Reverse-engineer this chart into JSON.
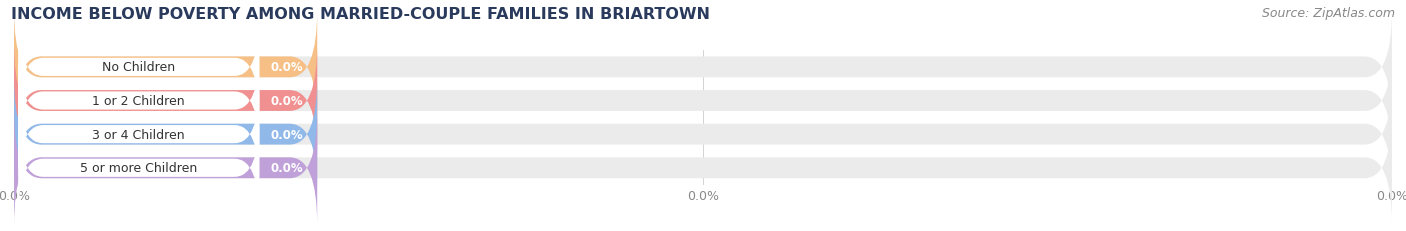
{
  "title": "INCOME BELOW POVERTY AMONG MARRIED-COUPLE FAMILIES IN BRIARTOWN",
  "source": "Source: ZipAtlas.com",
  "categories": [
    "No Children",
    "1 or 2 Children",
    "3 or 4 Children",
    "5 or more Children"
  ],
  "values": [
    0.0,
    0.0,
    0.0,
    0.0
  ],
  "bar_colors": [
    "#f5bf85",
    "#f09090",
    "#90b8e8",
    "#c0a0d8"
  ],
  "background_color": "#ffffff",
  "bar_bg_color": "#ebebeb",
  "title_fontsize": 11.5,
  "source_fontsize": 9,
  "tick_fontsize": 9,
  "label_fontsize": 9,
  "value_label_fontsize": 8.5
}
